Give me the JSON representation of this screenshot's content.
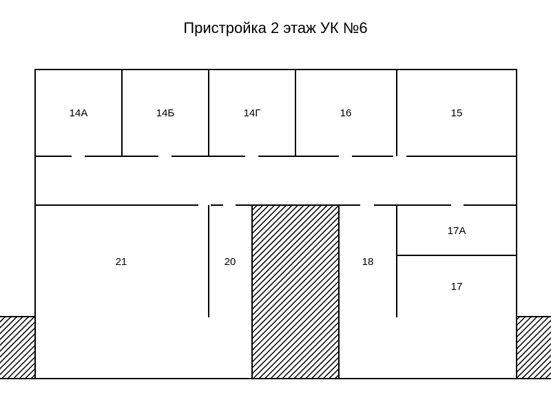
{
  "title": "Пристройка 2 этаж УК №6",
  "rooms": {
    "r14a": "14А",
    "r14b": "14Б",
    "r14g": "14Г",
    "r16": "16",
    "r15": "15",
    "r21": "21",
    "r20": "20",
    "r18": "18",
    "r17a": "17А",
    "r17": "17"
  },
  "colors": {
    "line": "#000000",
    "hatch": "#000000",
    "background": "#ffffff"
  }
}
